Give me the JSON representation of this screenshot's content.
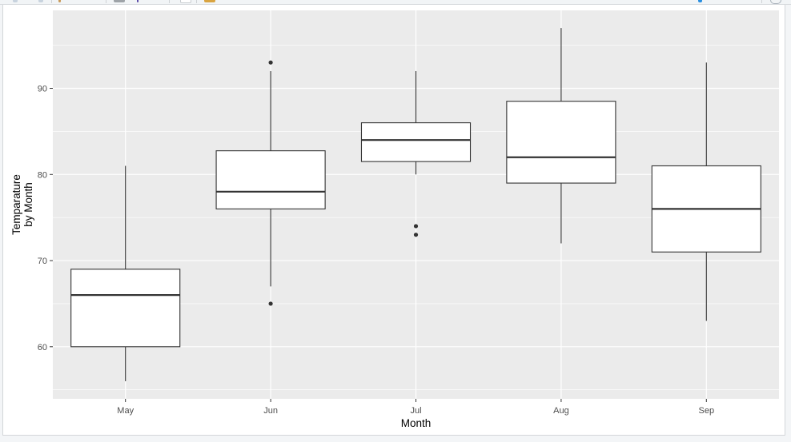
{
  "window": {
    "toolbar_clipped": true
  },
  "chart_data": {
    "type": "boxplot",
    "title": "",
    "xlabel": "Month",
    "ylabel": "Temparature\nby Month",
    "ylabel_lines": [
      "Temparature",
      "by Month"
    ],
    "categories": [
      "May",
      "Jun",
      "Jul",
      "Aug",
      "Sep"
    ],
    "ylim": [
      53.95,
      99.05
    ],
    "yticks": [
      60,
      70,
      80,
      90
    ],
    "ytick_labels": [
      "60",
      "70",
      "80",
      "90"
    ],
    "minor_gridlines": [
      55,
      65,
      75,
      85,
      95
    ],
    "grid": true,
    "theme": "ggplot2 theme_gray",
    "colors": {
      "panel_background": "#EBEBEB",
      "grid_line": "#FFFFFF",
      "box_fill": "#FFFFFF",
      "box_outline": "#333333",
      "outlier": "#333333",
      "tick_label": "#4D4D4D",
      "axis_title": "#000000"
    },
    "boxes": [
      {
        "label": "May",
        "whisker_low": 56,
        "q1": 60,
        "median": 66,
        "q3": 69,
        "whisker_high": 81,
        "outliers": []
      },
      {
        "label": "Jun",
        "whisker_low": 67,
        "q1": 76,
        "median": 78,
        "q3": 82.75,
        "whisker_high": 92,
        "outliers": [
          65,
          93
        ]
      },
      {
        "label": "Jul",
        "whisker_low": 80,
        "q1": 81.5,
        "median": 84,
        "q3": 86,
        "whisker_high": 92,
        "outliers": [
          73,
          74
        ]
      },
      {
        "label": "Aug",
        "whisker_low": 72,
        "q1": 79,
        "median": 82,
        "q3": 88.5,
        "whisker_high": 97,
        "outliers": []
      },
      {
        "label": "Sep",
        "whisker_low": 63,
        "q1": 71,
        "median": 76,
        "q3": 81,
        "whisker_high": 93,
        "outliers": []
      }
    ],
    "legend": null
  }
}
